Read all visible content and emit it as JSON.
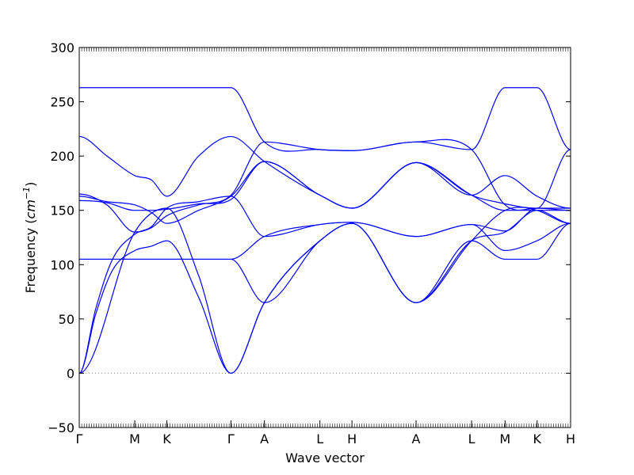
{
  "chart_data": {
    "type": "line",
    "title": "",
    "xlabel": "Wave vector",
    "ylabel": "Frequency",
    "ylabel_unit_base": "cm",
    "ylabel_unit_exp": "−1",
    "ylim": [
      -50,
      300
    ],
    "yticks": [
      -50,
      0,
      50,
      100,
      150,
      200,
      250,
      300
    ],
    "zero_line": true,
    "grid": false,
    "line_color": "#0000ff",
    "zero_line_color": "#808080",
    "q_points": [
      {
        "label": "Γ",
        "x": 0.0
      },
      {
        "label": "M",
        "x": 1.0
      },
      {
        "label": "K",
        "x": 1.577
      },
      {
        "label": "Γ",
        "x": 2.732
      },
      {
        "label": "A",
        "x": 3.335
      },
      {
        "label": "L",
        "x": 4.335
      },
      {
        "label": "H",
        "x": 4.912
      },
      {
        "label": "A",
        "x": 6.067
      },
      {
        "label": "L",
        "x": 7.067
      },
      {
        "label": "M",
        "x": 7.67
      },
      {
        "label": "K",
        "x": 8.247
      },
      {
        "label": "H",
        "x": 8.85
      }
    ],
    "bands": [
      {
        "x": [
          0,
          1.0,
          1.577,
          2.15,
          2.732,
          3.335,
          4.335,
          4.912,
          6.067,
          7.067,
          7.67,
          8.247,
          8.85
        ],
        "y": [
          0,
          130,
          152,
          90,
          0,
          65,
          122,
          138,
          65,
          122,
          130,
          150,
          138
        ]
      },
      {
        "x": [
          0,
          0.3,
          0.6,
          1.0,
          1.3,
          1.577,
          2.15,
          2.732,
          3.335,
          4.335,
          4.912,
          6.067,
          7.067,
          7.67,
          8.247,
          8.85
        ],
        "y": [
          0,
          55,
          95,
          113,
          117,
          122,
          70,
          0,
          65,
          122,
          138,
          65,
          122,
          105,
          105,
          138
        ]
      },
      {
        "x": [
          0,
          0.3,
          0.6,
          1.0,
          1.3,
          1.577,
          2.15,
          2.732,
          3.335,
          4.335,
          4.912,
          6.067,
          7.067,
          7.67,
          8.247,
          8.85
        ],
        "y": [
          0,
          60,
          105,
          128,
          135,
          152,
          158,
          163,
          126,
          137,
          139,
          126,
          137,
          113,
          122,
          138
        ]
      },
      {
        "x": [
          0,
          0.5,
          1.0,
          1.577,
          2.15,
          2.732,
          3.335,
          4.335,
          4.912,
          6.067,
          7.067,
          7.67,
          8.247,
          8.85
        ],
        "y": [
          105,
          105,
          105,
          105,
          105,
          105,
          126,
          137,
          139,
          126,
          137,
          131,
          152,
          152
        ]
      },
      {
        "x": [
          0,
          0.5,
          1.0,
          1.577,
          2.15,
          2.732,
          3.335,
          4.335,
          4.912,
          6.067,
          7.067,
          7.67,
          8.247,
          8.85
        ],
        "y": [
          105,
          105,
          105,
          105,
          105,
          105,
          65,
          122,
          138,
          65,
          122,
          150,
          152,
          150
        ]
      },
      {
        "x": [
          0,
          0.5,
          1.0,
          1.3,
          1.577,
          2.15,
          2.732,
          3.335,
          4.335,
          4.912,
          6.067,
          7.067,
          7.67,
          8.247,
          8.85
        ],
        "y": [
          159,
          157,
          150,
          150,
          151,
          156,
          160,
          195,
          164,
          152,
          194,
          164,
          156,
          150,
          138
        ]
      },
      {
        "x": [
          0,
          0.5,
          1.0,
          1.3,
          1.577,
          2.15,
          2.732,
          3.335,
          4.335,
          4.912,
          6.067,
          7.067,
          7.67,
          8.247,
          8.85
        ],
        "y": [
          163,
          158,
          155,
          148,
          138,
          150,
          163,
          195,
          164,
          152,
          194,
          164,
          182,
          163,
          152
        ]
      },
      {
        "x": [
          0,
          0.5,
          1.0,
          1.3,
          1.577,
          2.15,
          2.732,
          3.335,
          4.335,
          4.912,
          6.067,
          7.067,
          7.67,
          8.247,
          8.85
        ],
        "y": [
          165,
          155,
          130,
          134,
          145,
          155,
          164,
          213,
          206,
          205,
          213,
          206,
          263,
          263,
          206
        ]
      },
      {
        "x": [
          0,
          0.5,
          1.0,
          1.3,
          1.577,
          2.15,
          2.732,
          3.335,
          4.335,
          4.912,
          6.067,
          7.067,
          7.67,
          8.247,
          8.85
        ],
        "y": [
          218,
          200,
          182,
          178,
          163,
          200,
          218,
          195,
          164,
          152,
          194,
          164,
          150,
          150,
          150
        ]
      },
      {
        "x": [
          0,
          0.5,
          1.0,
          1.577,
          2.15,
          2.732,
          3.335,
          4.335,
          4.912,
          6.067,
          7.067,
          7.67,
          8.247,
          8.85
        ],
        "y": [
          263,
          263,
          263,
          263,
          263,
          263,
          213,
          206,
          205,
          213,
          206,
          155,
          152,
          206
        ]
      }
    ]
  }
}
